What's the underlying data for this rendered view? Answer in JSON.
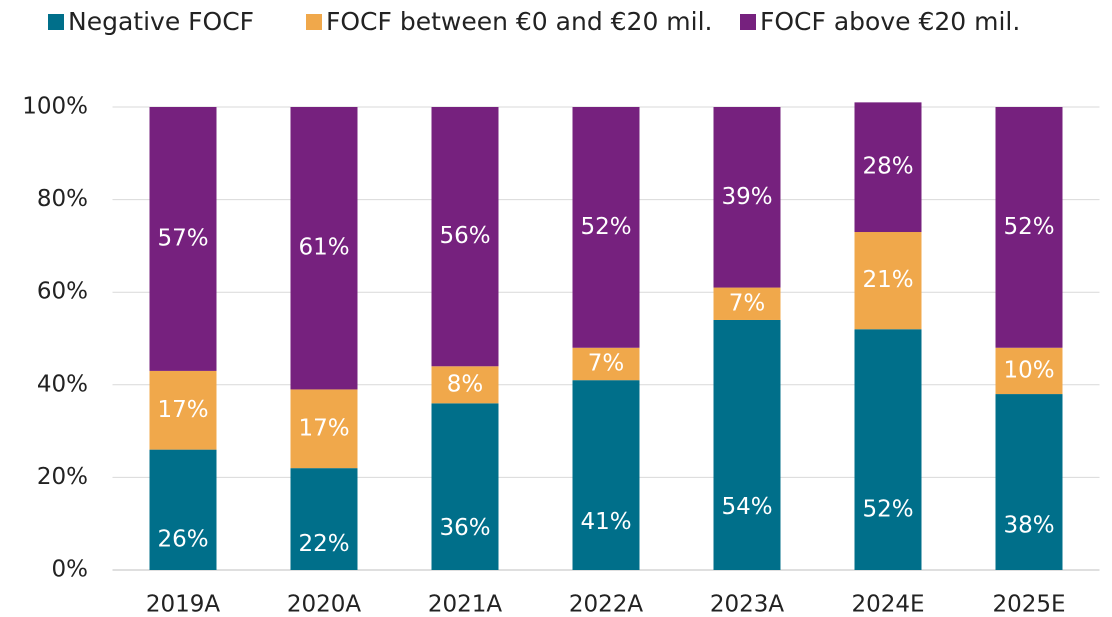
{
  "chart_data": {
    "type": "stacked_bar",
    "categories": [
      "2019A",
      "2020A",
      "2021A",
      "2022A",
      "2023A",
      "2024E",
      "2025E"
    ],
    "series": [
      {
        "name": "Negative FOCF",
        "color": "#006f8a",
        "values": [
          26,
          22,
          36,
          41,
          54,
          52,
          38
        ],
        "value_labels": [
          "26%",
          "22%",
          "36%",
          "41%",
          "54%",
          "52%",
          "38%"
        ]
      },
      {
        "name": "FOCF between €0 and €20 mil.",
        "color": "#f0a84b",
        "values": [
          17,
          17,
          8,
          7,
          7,
          21,
          10
        ],
        "value_labels": [
          "17%",
          "17%",
          "8%",
          "7%",
          "7%",
          "21%",
          "10%"
        ]
      },
      {
        "name": "FOCF above €20 mil.",
        "color": "#76217e",
        "values": [
          57,
          61,
          56,
          52,
          39,
          28,
          52
        ],
        "value_labels": [
          "57%",
          "61%",
          "56%",
          "52%",
          "39%",
          "28%",
          "52%"
        ]
      }
    ],
    "ylim": [
      0,
      100
    ],
    "yticks": [
      {
        "value": 0,
        "label": "0%"
      },
      {
        "value": 20,
        "label": "20%"
      },
      {
        "value": 40,
        "label": "40%"
      },
      {
        "value": 60,
        "label": "60%"
      },
      {
        "value": 80,
        "label": "80%"
      },
      {
        "value": 100,
        "label": "100%"
      }
    ],
    "grid": true,
    "legend": "top"
  }
}
